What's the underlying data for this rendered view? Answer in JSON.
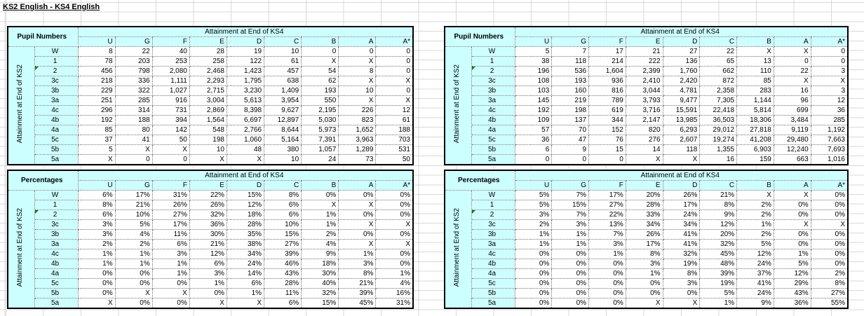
{
  "title": "KS2 English - KS4 English",
  "top_label": "Attainment at End of KS4",
  "side_label": "Attainment at End of KS2",
  "columns": [
    "U",
    "G",
    "F",
    "E",
    "D",
    "C",
    "B",
    "A",
    "A*"
  ],
  "row_labels": [
    "W",
    "1",
    "2",
    "3c",
    "3b",
    "3a",
    "4c",
    "4b",
    "4a",
    "5c",
    "5b",
    "5a"
  ],
  "flagged_row_label": "2",
  "colors": {
    "cell_fill": "#ccffff",
    "table_border": "#000000",
    "grid_line": "#d8d8d8",
    "flag_green": "#007f00"
  },
  "tables": [
    {
      "name": "pupil-numbers-left",
      "corner_label": "Pupil Numbers",
      "rows": [
        [
          "8",
          "22",
          "40",
          "28",
          "19",
          "10",
          "0",
          "0",
          "0"
        ],
        [
          "78",
          "203",
          "253",
          "258",
          "122",
          "61",
          "X",
          "X",
          "0"
        ],
        [
          "456",
          "798",
          "2,080",
          "2,468",
          "1,423",
          "457",
          "54",
          "8",
          "0"
        ],
        [
          "218",
          "336",
          "1,111",
          "2,293",
          "1,795",
          "638",
          "62",
          "X",
          "X"
        ],
        [
          "229",
          "322",
          "1,027",
          "2,715",
          "3,230",
          "1,409",
          "193",
          "10",
          "0"
        ],
        [
          "251",
          "285",
          "916",
          "3,004",
          "5,613",
          "3,954",
          "550",
          "X",
          "X"
        ],
        [
          "296",
          "314",
          "731",
          "2,869",
          "8,398",
          "9,627",
          "2,195",
          "226",
          "12"
        ],
        [
          "192",
          "188",
          "394",
          "1,564",
          "6,697",
          "12,897",
          "5,030",
          "823",
          "61"
        ],
        [
          "85",
          "80",
          "142",
          "548",
          "2,766",
          "8,644",
          "5,973",
          "1,652",
          "188"
        ],
        [
          "37",
          "41",
          "50",
          "198",
          "1,060",
          "5,164",
          "7,391",
          "3,963",
          "703"
        ],
        [
          "5",
          "X",
          "X",
          "10",
          "48",
          "380",
          "1,057",
          "1,289",
          "531"
        ],
        [
          "X",
          "0",
          "0",
          "X",
          "X",
          "10",
          "24",
          "73",
          "50"
        ]
      ]
    },
    {
      "name": "percentages-left",
      "corner_label": "Percentages",
      "rows": [
        [
          "6%",
          "17%",
          "31%",
          "22%",
          "15%",
          "8%",
          "0%",
          "0%",
          "0%"
        ],
        [
          "8%",
          "21%",
          "26%",
          "26%",
          "12%",
          "6%",
          "X",
          "X",
          "0%"
        ],
        [
          "6%",
          "10%",
          "27%",
          "32%",
          "18%",
          "6%",
          "1%",
          "0%",
          "0%"
        ],
        [
          "3%",
          "5%",
          "17%",
          "36%",
          "28%",
          "10%",
          "1%",
          "X",
          "X"
        ],
        [
          "3%",
          "4%",
          "11%",
          "30%",
          "35%",
          "15%",
          "2%",
          "0%",
          "0%"
        ],
        [
          "2%",
          "2%",
          "6%",
          "21%",
          "38%",
          "27%",
          "4%",
          "X",
          "X"
        ],
        [
          "1%",
          "1%",
          "3%",
          "12%",
          "34%",
          "39%",
          "9%",
          "1%",
          "0%"
        ],
        [
          "1%",
          "1%",
          "1%",
          "6%",
          "24%",
          "46%",
          "18%",
          "3%",
          "0%"
        ],
        [
          "0%",
          "0%",
          "1%",
          "3%",
          "14%",
          "43%",
          "30%",
          "8%",
          "1%"
        ],
        [
          "0%",
          "0%",
          "0%",
          "1%",
          "6%",
          "28%",
          "40%",
          "21%",
          "4%"
        ],
        [
          "0%",
          "X",
          "X",
          "0%",
          "1%",
          "11%",
          "32%",
          "39%",
          "16%"
        ],
        [
          "X",
          "0%",
          "0%",
          "X",
          "X",
          "6%",
          "15%",
          "45%",
          "31%"
        ]
      ]
    },
    {
      "name": "pupil-numbers-right",
      "corner_label": "Pupil Numbers",
      "rows": [
        [
          "5",
          "7",
          "17",
          "21",
          "27",
          "22",
          "X",
          "X",
          "0"
        ],
        [
          "38",
          "118",
          "214",
          "222",
          "136",
          "65",
          "13",
          "0",
          "0"
        ],
        [
          "196",
          "536",
          "1,604",
          "2,399",
          "1,760",
          "662",
          "110",
          "22",
          "3"
        ],
        [
          "108",
          "193",
          "936",
          "2,410",
          "2,420",
          "872",
          "85",
          "X",
          "X"
        ],
        [
          "103",
          "160",
          "816",
          "3,044",
          "4,781",
          "2,358",
          "283",
          "16",
          "3"
        ],
        [
          "145",
          "219",
          "789",
          "3,793",
          "9,477",
          "7,305",
          "1,144",
          "96",
          "12"
        ],
        [
          "192",
          "198",
          "619",
          "3,716",
          "15,591",
          "22,418",
          "5,814",
          "699",
          "36"
        ],
        [
          "109",
          "137",
          "344",
          "2,147",
          "13,985",
          "36,503",
          "18,306",
          "3,484",
          "285"
        ],
        [
          "57",
          "70",
          "152",
          "820",
          "6,293",
          "29,012",
          "27,818",
          "9,119",
          "1,192"
        ],
        [
          "36",
          "47",
          "76",
          "276",
          "2,607",
          "19,274",
          "41,208",
          "29,480",
          "7,663"
        ],
        [
          "6",
          "9",
          "15",
          "14",
          "118",
          "1,355",
          "6,903",
          "12,240",
          "7,693"
        ],
        [
          "0",
          "0",
          "0",
          "X",
          "X",
          "16",
          "159",
          "663",
          "1,016"
        ]
      ]
    },
    {
      "name": "percentages-right",
      "corner_label": "Percentages",
      "rows": [
        [
          "5%",
          "7%",
          "17%",
          "20%",
          "26%",
          "21%",
          "X",
          "X",
          "0%"
        ],
        [
          "5%",
          "15%",
          "27%",
          "28%",
          "17%",
          "8%",
          "2%",
          "0%",
          "0%"
        ],
        [
          "3%",
          "7%",
          "22%",
          "33%",
          "24%",
          "9%",
          "2%",
          "0%",
          "0%"
        ],
        [
          "2%",
          "3%",
          "13%",
          "34%",
          "34%",
          "12%",
          "1%",
          "X",
          "X"
        ],
        [
          "1%",
          "1%",
          "7%",
          "26%",
          "41%",
          "20%",
          "2%",
          "0%",
          "0%"
        ],
        [
          "1%",
          "1%",
          "3%",
          "17%",
          "41%",
          "32%",
          "5%",
          "0%",
          "0%"
        ],
        [
          "0%",
          "0%",
          "1%",
          "8%",
          "32%",
          "45%",
          "12%",
          "1%",
          "0%"
        ],
        [
          "0%",
          "0%",
          "0%",
          "3%",
          "19%",
          "48%",
          "24%",
          "5%",
          "0%"
        ],
        [
          "0%",
          "0%",
          "0%",
          "1%",
          "8%",
          "39%",
          "37%",
          "12%",
          "2%"
        ],
        [
          "0%",
          "0%",
          "0%",
          "0%",
          "3%",
          "19%",
          "41%",
          "29%",
          "8%"
        ],
        [
          "0%",
          "0%",
          "0%",
          "0%",
          "0%",
          "5%",
          "24%",
          "43%",
          "27%"
        ],
        [
          "0%",
          "0%",
          "0%",
          "X",
          "X",
          "1%",
          "9%",
          "36%",
          "55%"
        ]
      ]
    }
  ]
}
